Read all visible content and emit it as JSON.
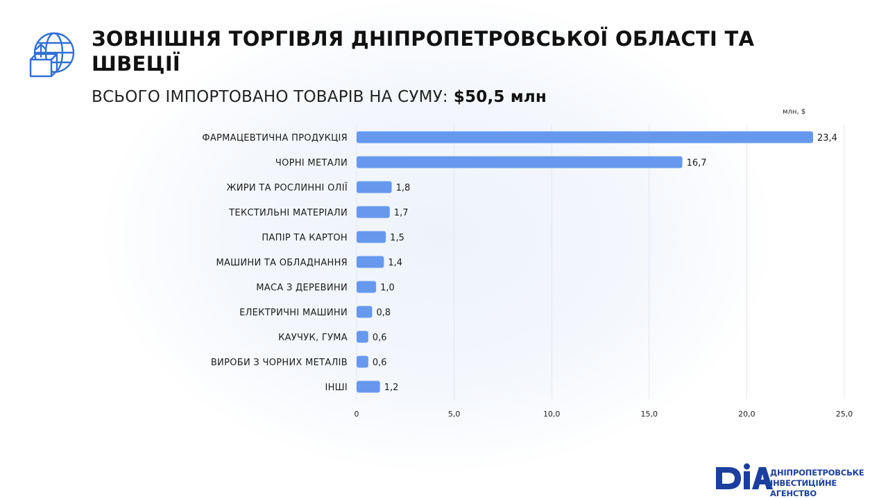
{
  "header": {
    "title": "ЗОВНІШНЯ ТОРГІВЛЯ ДНІПРОПЕТРОВСЬКОЇ ОБЛАСТІ ТА ШВЕЦІЇ",
    "subtitle_prefix": "ВСЬОГО ІМПОРТОВАНО ТОВАРІВ НА СУМУ:",
    "subtitle_value": "$50,5 млн",
    "icon": "globe-box-upload-icon"
  },
  "chart_data": {
    "type": "bar",
    "orientation": "horizontal",
    "unit": "млн, $",
    "categories": [
      "ФАРМАЦЕВТИЧНА ПРОДУКЦІЯ",
      "ЧОРНІ МЕТАЛИ",
      "ЖИРИ ТА РОСЛИННІ ОЛІЇ",
      "ТЕКСТИЛЬНІ МАТЕРІАЛИ",
      "ПАПІР ТА КАРТОН",
      "МАШИНИ ТА ОБЛАДНАННЯ",
      "МАСА З ДЕРЕВИНИ",
      "ЕЛЕКТРИЧНІ МАШИНИ",
      "КАУЧУК, ГУМА",
      "ВИРОБИ З ЧОРНИХ МЕТАЛІВ",
      "ІНШІ"
    ],
    "values": [
      23.4,
      16.7,
      1.8,
      1.7,
      1.5,
      1.4,
      1.0,
      0.8,
      0.6,
      0.6,
      1.2
    ],
    "value_labels": [
      "23,4",
      "16,7",
      "1,8",
      "1,7",
      "1,5",
      "1,4",
      "1,0",
      "0,8",
      "0,6",
      "0,6",
      "1,2"
    ],
    "xlim": [
      0,
      25
    ],
    "ticks": [
      0,
      5,
      10,
      15,
      20,
      25
    ],
    "tick_labels": [
      "0",
      "5,0",
      "10,0",
      "15,0",
      "20,0",
      "25,0"
    ],
    "grid": "vertical",
    "bar_color": "#6699ee"
  },
  "footer": {
    "logo_mark": "DIA",
    "logo_line1": "ДНІПРОПЕТРОВСЬКЕ",
    "logo_line2": "ІНВЕСТИЦІЙНЕ АГЕНСТВО",
    "brand_color": "#1b3f9e"
  }
}
